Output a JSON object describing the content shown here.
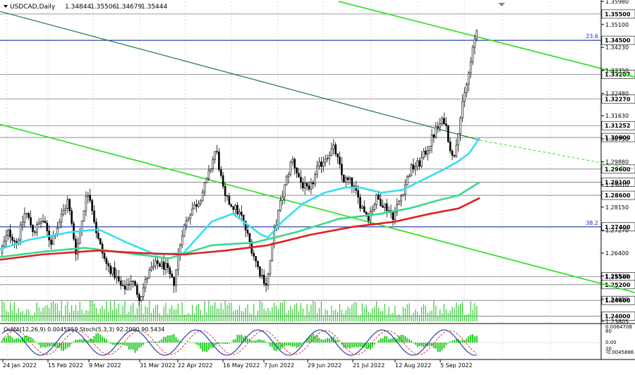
{
  "header": {
    "symbol": "USDCAD,Daily",
    "ohlc": [
      "1.34844",
      "1.35506",
      "1.34679",
      "1.35444"
    ]
  },
  "indicator_header": "OsMA(12,26,9) 0.0045959  Stoch(5,3,3) 92.2090 90.5434",
  "chart_data": {
    "type": "candlestick",
    "title": "USDCAD,Daily",
    "ylim": [
      1.238,
      1.3598
    ],
    "price_axis_ticks": [
      "1.35980",
      "1.35100",
      "1.34230",
      "1.33350",
      "1.32480",
      "1.31630",
      "1.30750",
      "1.29880",
      "1.29010",
      "1.28150",
      "1.27270",
      "1.26400",
      "1.25530",
      "1.24650",
      "1.23805"
    ],
    "levels": [
      {
        "value": 1.355,
        "label": "1.35500"
      },
      {
        "value": 1.345,
        "label": "1.34500",
        "fib": "23.6"
      },
      {
        "value": 1.33207,
        "label": "1.33207"
      },
      {
        "value": 1.3227,
        "label": "1.32270"
      },
      {
        "value": 1.31252,
        "label": "1.31252"
      },
      {
        "value": 1.308,
        "label": "1.30800"
      },
      {
        "value": 1.296,
        "label": "1.29600"
      },
      {
        "value": 1.291,
        "label": "1.29100"
      },
      {
        "value": 1.286,
        "label": "1.28600"
      },
      {
        "value": 1.274,
        "label": "1.27400",
        "fib": "38.2"
      },
      {
        "value": 1.255,
        "label": "1.25500"
      },
      {
        "value": 1.252,
        "label": "1.25200"
      },
      {
        "value": 1.246,
        "label": "1.24600"
      },
      {
        "value": 1.24,
        "label": "1.24000"
      }
    ],
    "x_dates": [
      "24 Jan 2022",
      "15 Feb 2022",
      "9 Mar 2022",
      "31 Mar 2022",
      "22 Apr 2022",
      "16 May 2022",
      "7 Jun 2022",
      "29 Jun 2022",
      "21 Jul 2022",
      "12 Aug 2022",
      "5 Sep 2022"
    ],
    "close_path": [
      [
        0,
        1.264
      ],
      [
        12,
        1.272
      ],
      [
        24,
        1.268
      ],
      [
        36,
        1.28
      ],
      [
        48,
        1.272
      ],
      [
        60,
        1.277
      ],
      [
        72,
        1.268
      ],
      [
        84,
        1.276
      ],
      [
        96,
        1.284
      ],
      [
        108,
        1.264
      ],
      [
        120,
        1.283
      ],
      [
        126,
        1.288
      ],
      [
        138,
        1.27
      ],
      [
        150,
        1.26
      ],
      [
        162,
        1.256
      ],
      [
        174,
        1.25
      ],
      [
        186,
        1.254
      ],
      [
        198,
        1.247
      ],
      [
        210,
        1.256
      ],
      [
        222,
        1.26
      ],
      [
        234,
        1.259
      ],
      [
        246,
        1.252
      ],
      [
        258,
        1.272
      ],
      [
        270,
        1.28
      ],
      [
        282,
        1.284
      ],
      [
        294,
        1.292
      ],
      [
        306,
        1.304
      ],
      [
        318,
        1.285
      ],
      [
        330,
        1.282
      ],
      [
        342,
        1.278
      ],
      [
        354,
        1.268
      ],
      [
        366,
        1.258
      ],
      [
        378,
        1.252
      ],
      [
        390,
        1.274
      ],
      [
        402,
        1.288
      ],
      [
        414,
        1.3
      ],
      [
        426,
        1.291
      ],
      [
        438,
        1.287
      ],
      [
        450,
        1.296
      ],
      [
        462,
        1.301
      ],
      [
        474,
        1.304
      ],
      [
        486,
        1.292
      ],
      [
        498,
        1.291
      ],
      [
        510,
        1.283
      ],
      [
        522,
        1.278
      ],
      [
        534,
        1.285
      ],
      [
        546,
        1.282
      ],
      [
        558,
        1.278
      ],
      [
        570,
        1.287
      ],
      [
        582,
        1.296
      ],
      [
        594,
        1.298
      ],
      [
        606,
        1.304
      ],
      [
        618,
        1.311
      ],
      [
        630,
        1.315
      ],
      [
        642,
        1.299
      ],
      [
        654,
        1.318
      ],
      [
        664,
        1.332
      ],
      [
        672,
        1.344
      ],
      [
        680,
        1.3544
      ]
    ],
    "moving_averages": [
      {
        "color": "#33e0f0",
        "points": [
          [
            0,
            1.2655
          ],
          [
            40,
            1.269
          ],
          [
            100,
            1.272
          ],
          [
            140,
            1.273
          ],
          [
            180,
            1.268
          ],
          [
            220,
            1.2635
          ],
          [
            260,
            1.264
          ],
          [
            300,
            1.276
          ],
          [
            330,
            1.279
          ],
          [
            350,
            1.275
          ],
          [
            370,
            1.271
          ],
          [
            380,
            1.27
          ],
          [
            400,
            1.276
          ],
          [
            430,
            1.283
          ],
          [
            460,
            1.287
          ],
          [
            490,
            1.289
          ],
          [
            510,
            1.289
          ],
          [
            540,
            1.287
          ],
          [
            570,
            1.288
          ],
          [
            600,
            1.292
          ],
          [
            630,
            1.296
          ],
          [
            650,
            1.299
          ],
          [
            665,
            1.302
          ],
          [
            680,
            1.308
          ]
        ]
      },
      {
        "color": "#3cd890",
        "points": [
          [
            0,
            1.2625
          ],
          [
            60,
            1.2645
          ],
          [
            120,
            1.266
          ],
          [
            180,
            1.264
          ],
          [
            240,
            1.262
          ],
          [
            300,
            1.267
          ],
          [
            360,
            1.268
          ],
          [
            420,
            1.272
          ],
          [
            480,
            1.277
          ],
          [
            540,
            1.279
          ],
          [
            580,
            1.281
          ],
          [
            620,
            1.284
          ],
          [
            650,
            1.286
          ],
          [
            680,
            1.291
          ]
        ]
      },
      {
        "color": "#e02020",
        "points": [
          [
            0,
            1.2615
          ],
          [
            60,
            1.2635
          ],
          [
            140,
            1.265
          ],
          [
            200,
            1.264
          ],
          [
            260,
            1.2635
          ],
          [
            320,
            1.265
          ],
          [
            380,
            1.267
          ],
          [
            440,
            1.271
          ],
          [
            500,
            1.274
          ],
          [
            560,
            1.276
          ],
          [
            610,
            1.279
          ],
          [
            650,
            1.281
          ],
          [
            680,
            1.285
          ]
        ]
      }
    ],
    "trend_lines": [
      {
        "color": "#39e02a",
        "points": [
          [
            480,
            1.3598
          ],
          [
            900,
            1.331
          ]
        ]
      },
      {
        "color": "#39e02a",
        "points": [
          [
            0,
            1.313
          ],
          [
            900,
            1.249
          ]
        ]
      },
      {
        "color": "#1e7a3a",
        "points": [
          [
            0,
            1.356
          ],
          [
            680,
            1.307
          ]
        ],
        "extend_dashed_to": [
          900,
          1.296
        ]
      }
    ]
  }
}
